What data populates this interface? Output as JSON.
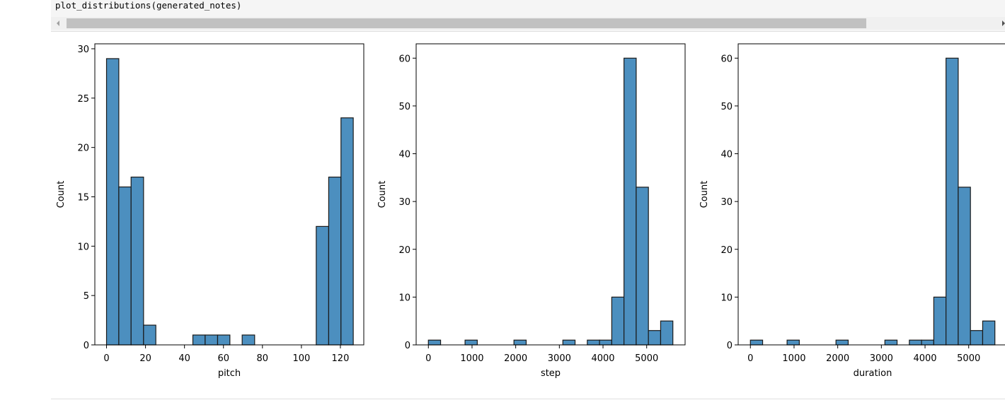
{
  "code": {
    "line": "plot_distributions(generated_notes)"
  },
  "colors": {
    "bar_fill": "#4c8fbf",
    "bar_edge": "#1a1a1a",
    "code_bg": "#f5f5f5",
    "scroll_thumb": "#c1c1c1"
  },
  "chart_data": [
    {
      "type": "bar",
      "xlabel": "pitch",
      "ylabel": "Count",
      "xlim": [
        -6,
        132
      ],
      "ylim": [
        0,
        30.5
      ],
      "xticks": [
        0,
        20,
        40,
        60,
        80,
        100,
        120
      ],
      "yticks": [
        0,
        5,
        10,
        15,
        20,
        25,
        30
      ],
      "bins": [
        {
          "x0": 0,
          "x1": 6.3,
          "value": 29
        },
        {
          "x0": 6.3,
          "x1": 12.6,
          "value": 16
        },
        {
          "x0": 12.6,
          "x1": 19,
          "value": 17
        },
        {
          "x0": 19,
          "x1": 25.3,
          "value": 2
        },
        {
          "x0": 44.3,
          "x1": 50.6,
          "value": 1
        },
        {
          "x0": 50.6,
          "x1": 57,
          "value": 1
        },
        {
          "x0": 57,
          "x1": 63.3,
          "value": 1
        },
        {
          "x0": 69.6,
          "x1": 76,
          "value": 1
        },
        {
          "x0": 107.6,
          "x1": 114,
          "value": 12
        },
        {
          "x0": 114,
          "x1": 120.3,
          "value": 17
        },
        {
          "x0": 120.3,
          "x1": 126.6,
          "value": 23
        }
      ]
    },
    {
      "type": "bar",
      "xlabel": "step",
      "ylabel": "Count",
      "xlim": [
        -280,
        5880
      ],
      "ylim": [
        0,
        63
      ],
      "xticks": [
        0,
        1000,
        2000,
        3000,
        4000,
        5000
      ],
      "yticks": [
        0,
        10,
        20,
        30,
        40,
        50,
        60
      ],
      "bins": [
        {
          "x0": 0,
          "x1": 280,
          "value": 1
        },
        {
          "x0": 840,
          "x1": 1120,
          "value": 1
        },
        {
          "x0": 1960,
          "x1": 2240,
          "value": 1
        },
        {
          "x0": 3080,
          "x1": 3360,
          "value": 1
        },
        {
          "x0": 3640,
          "x1": 3920,
          "value": 1
        },
        {
          "x0": 3920,
          "x1": 4200,
          "value": 1
        },
        {
          "x0": 4200,
          "x1": 4480,
          "value": 10
        },
        {
          "x0": 4480,
          "x1": 4760,
          "value": 60
        },
        {
          "x0": 4760,
          "x1": 5040,
          "value": 33
        },
        {
          "x0": 5040,
          "x1": 5320,
          "value": 3
        },
        {
          "x0": 5320,
          "x1": 5600,
          "value": 5
        }
      ]
    },
    {
      "type": "bar",
      "xlabel": "duration",
      "ylabel": "Count",
      "xlim": [
        -280,
        5880
      ],
      "ylim": [
        0,
        63
      ],
      "xticks": [
        0,
        1000,
        2000,
        3000,
        4000,
        5000
      ],
      "yticks": [
        0,
        10,
        20,
        30,
        40,
        50,
        60
      ],
      "bins": [
        {
          "x0": 0,
          "x1": 280,
          "value": 1
        },
        {
          "x0": 840,
          "x1": 1120,
          "value": 1
        },
        {
          "x0": 1960,
          "x1": 2240,
          "value": 1
        },
        {
          "x0": 3080,
          "x1": 3360,
          "value": 1
        },
        {
          "x0": 3640,
          "x1": 3920,
          "value": 1
        },
        {
          "x0": 3920,
          "x1": 4200,
          "value": 1
        },
        {
          "x0": 4200,
          "x1": 4480,
          "value": 10
        },
        {
          "x0": 4480,
          "x1": 4760,
          "value": 60
        },
        {
          "x0": 4760,
          "x1": 5040,
          "value": 33
        },
        {
          "x0": 5040,
          "x1": 5320,
          "value": 3
        },
        {
          "x0": 5320,
          "x1": 5600,
          "value": 5
        }
      ]
    }
  ]
}
